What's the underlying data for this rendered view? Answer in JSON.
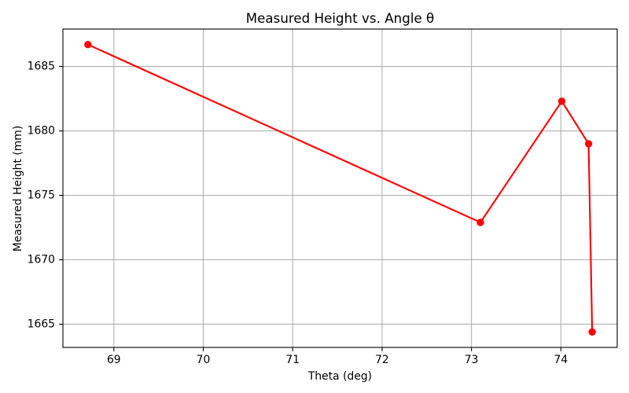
{
  "chart_data": {
    "type": "line",
    "title": "Measured Height vs. Angle θ",
    "xlabel": "Theta (deg)",
    "ylabel": "Measured Height (mm)",
    "x": [
      68.71,
      73.1,
      74.01,
      74.31,
      74.35
    ],
    "series": [
      {
        "values": [
          1686.7,
          1672.9,
          1682.3,
          1679.0,
          1664.4
        ],
        "color": "#ff0000"
      }
    ],
    "xlim": [
      68.43,
      74.63
    ],
    "ylim": [
      1663.2,
      1687.9
    ],
    "x_ticks": [
      69,
      70,
      71,
      72,
      73,
      74
    ],
    "y_ticks": [
      1665,
      1670,
      1675,
      1680,
      1685
    ],
    "grid": true,
    "legend": false
  },
  "colors": {
    "grid": "#b0b0b0",
    "axes": "#000000",
    "background": "#ffffff"
  }
}
